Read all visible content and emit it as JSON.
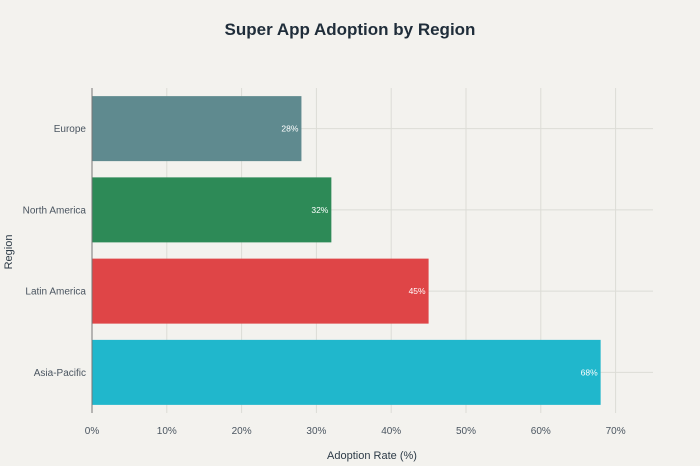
{
  "chart_data": {
    "type": "bar",
    "orientation": "horizontal",
    "title": "Super App Adoption by Region",
    "xlabel": "Adoption Rate (%)",
    "ylabel": "Region",
    "categories": [
      "Europe",
      "North America",
      "Latin America",
      "Asia-Pacific"
    ],
    "values": [
      28,
      32,
      45,
      68
    ],
    "value_labels": [
      "28%",
      "32%",
      "45%",
      "68%"
    ],
    "colors": [
      "#5f8a8f",
      "#2d8a57",
      "#df4547",
      "#20b7cc"
    ],
    "xlim": [
      0,
      75
    ],
    "xticks": [
      0,
      10,
      20,
      30,
      40,
      50,
      60,
      70
    ],
    "xtick_labels": [
      "0%",
      "10%",
      "20%",
      "30%",
      "40%",
      "50%",
      "60%",
      "70%"
    ],
    "grid": true,
    "legend": "none"
  }
}
